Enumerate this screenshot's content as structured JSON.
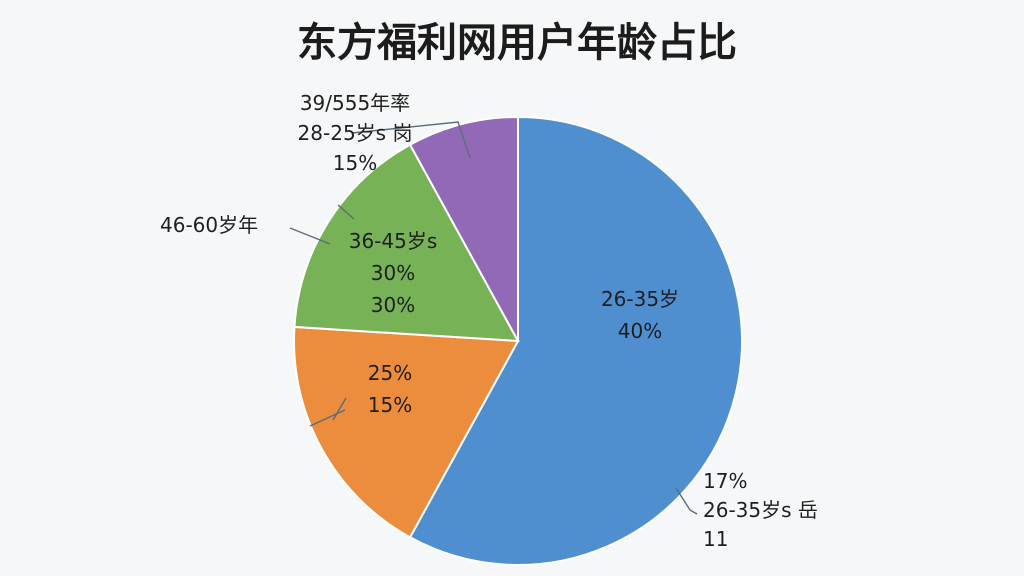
{
  "chart_data": {
    "type": "pie",
    "title": "东方福利网用户年龄占比",
    "slices": [
      {
        "value": 58,
        "color": "#4f8fd0"
      },
      {
        "value": 18,
        "color": "#ec8d3e"
      },
      {
        "value": 16,
        "color": "#77b256"
      },
      {
        "value": 8,
        "color": "#9269b6"
      }
    ],
    "inner_labels": [
      {
        "lines": [
          "26-35岁",
          "40%"
        ]
      },
      {
        "lines": [
          "25%",
          "15%"
        ]
      },
      {
        "lines": [
          "36-45岁s",
          "30%",
          "30%"
        ]
      }
    ],
    "outer_labels": [
      {
        "lines": [
          "39/555年率",
          "28-25岁s 岗",
          "15%"
        ]
      },
      {
        "lines": [
          "46-60岁年"
        ]
      },
      {
        "lines": [
          "17%",
          "26-35岁s 岳",
          "11"
        ]
      }
    ]
  }
}
